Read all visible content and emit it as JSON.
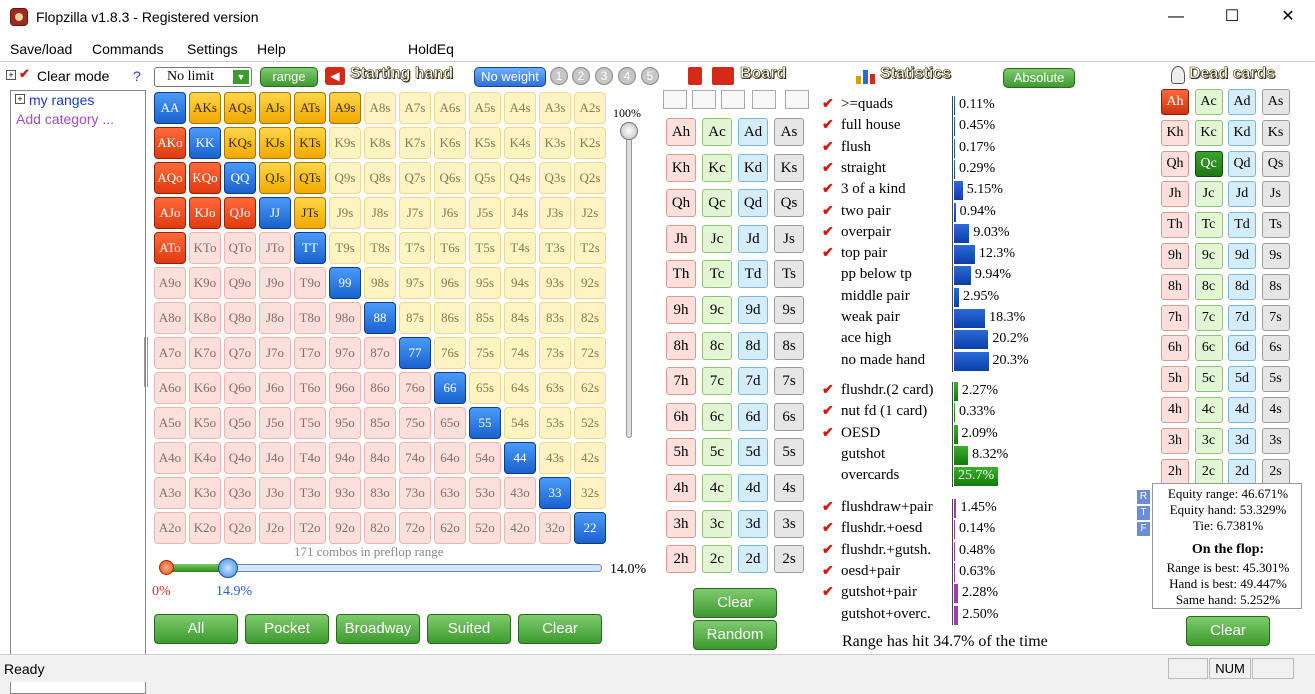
{
  "window": {
    "title": "Flopzilla v1.8.3 - Registered version",
    "min": "—",
    "max": "☐",
    "close": "✕"
  },
  "menu": [
    "Save/load",
    "Commands",
    "Settings",
    "Help",
    "HoldEq"
  ],
  "left": {
    "clear_mode": "Clear mode",
    "help": "?",
    "tree_item": "my ranges",
    "add_category": "Add category ..."
  },
  "toolbar": {
    "limit": "No limit",
    "range": "range",
    "starting_hand": "Starting hand",
    "no_weight": "No weight",
    "weights": [
      "1",
      "2",
      "3",
      "4",
      "5"
    ]
  },
  "grid": {
    "rows": [
      [
        "AA",
        "AKs",
        "AQs",
        "AJs",
        "ATs",
        "A9s",
        "A8s",
        "A7s",
        "A6s",
        "A5s",
        "A4s",
        "A3s",
        "A2s"
      ],
      [
        "AKo",
        "KK",
        "KQs",
        "KJs",
        "KTs",
        "K9s",
        "K8s",
        "K7s",
        "K6s",
        "K5s",
        "K4s",
        "K3s",
        "K2s"
      ],
      [
        "AQo",
        "KQo",
        "QQ",
        "QJs",
        "QTs",
        "Q9s",
        "Q8s",
        "Q7s",
        "Q6s",
        "Q5s",
        "Q4s",
        "Q3s",
        "Q2s"
      ],
      [
        "AJo",
        "KJo",
        "QJo",
        "JJ",
        "JTs",
        "J9s",
        "J8s",
        "J7s",
        "J6s",
        "J5s",
        "J4s",
        "J3s",
        "J2s"
      ],
      [
        "ATo",
        "KTo",
        "QTo",
        "JTo",
        "TT",
        "T9s",
        "T8s",
        "T7s",
        "T6s",
        "T5s",
        "T4s",
        "T3s",
        "T2s"
      ],
      [
        "A9o",
        "K9o",
        "Q9o",
        "J9o",
        "T9o",
        "99",
        "98s",
        "97s",
        "96s",
        "95s",
        "94s",
        "93s",
        "92s"
      ],
      [
        "A8o",
        "K8o",
        "Q8o",
        "J8o",
        "T8o",
        "98o",
        "88",
        "87s",
        "86s",
        "85s",
        "84s",
        "83s",
        "82s"
      ],
      [
        "A7o",
        "K7o",
        "Q7o",
        "J7o",
        "T7o",
        "97o",
        "87o",
        "77",
        "76s",
        "75s",
        "74s",
        "73s",
        "72s"
      ],
      [
        "A6o",
        "K6o",
        "Q6o",
        "J6o",
        "T6o",
        "96o",
        "86o",
        "76o",
        "66",
        "65s",
        "64s",
        "63s",
        "62s"
      ],
      [
        "A5o",
        "K5o",
        "Q5o",
        "J5o",
        "T5o",
        "95o",
        "85o",
        "75o",
        "65o",
        "55",
        "54s",
        "53s",
        "52s"
      ],
      [
        "A4o",
        "K4o",
        "Q4o",
        "J4o",
        "T4o",
        "94o",
        "84o",
        "74o",
        "64o",
        "54o",
        "44",
        "43s",
        "42s"
      ],
      [
        "A3o",
        "K3o",
        "Q3o",
        "J3o",
        "T3o",
        "93o",
        "83o",
        "73o",
        "63o",
        "53o",
        "43o",
        "33",
        "32s"
      ],
      [
        "A2o",
        "K2o",
        "Q2o",
        "J2o",
        "T2o",
        "92o",
        "82o",
        "72o",
        "62o",
        "52o",
        "42o",
        "32o",
        "22"
      ]
    ],
    "selected": [
      "AA",
      "KK",
      "QQ",
      "JJ",
      "TT",
      "99",
      "88",
      "77",
      "66",
      "55",
      "44",
      "33",
      "22",
      "AKs",
      "AQs",
      "AJs",
      "ATs",
      "A9s",
      "KQs",
      "KJs",
      "KTs",
      "QJs",
      "QTs",
      "JTs",
      "AKo",
      "AQo",
      "KQo",
      "AJo",
      "KJo",
      "QJo",
      "ATo"
    ],
    "vslider_label": "100%",
    "combos": "171 combos in preflop range",
    "hslider_left": "0%",
    "hslider_value": "14.9%",
    "hslider_right": "14.0%",
    "hslider_fraction": 0.149
  },
  "bottom_buttons": [
    "All",
    "Pocket",
    "Broadway",
    "Suited",
    "Clear"
  ],
  "board": {
    "header": "Board",
    "rows": [
      [
        "Ah",
        "Ac",
        "Ad",
        "As"
      ],
      [
        "Kh",
        "Kc",
        "Kd",
        "Ks"
      ],
      [
        "Qh",
        "Qc",
        "Qd",
        "Qs"
      ],
      [
        "Jh",
        "Jc",
        "Jd",
        "Js"
      ],
      [
        "Th",
        "Tc",
        "Td",
        "Ts"
      ],
      [
        "9h",
        "9c",
        "9d",
        "9s"
      ],
      [
        "8h",
        "8c",
        "8d",
        "8s"
      ],
      [
        "7h",
        "7c",
        "7d",
        "7s"
      ],
      [
        "6h",
        "6c",
        "6d",
        "6s"
      ],
      [
        "5h",
        "5c",
        "5d",
        "5s"
      ],
      [
        "4h",
        "4c",
        "4d",
        "4s"
      ],
      [
        "3h",
        "3c",
        "3d",
        "3s"
      ],
      [
        "2h",
        "2c",
        "2d",
        "2s"
      ]
    ],
    "clear": "Clear",
    "random": "Random"
  },
  "statistics": {
    "header": "Statistics",
    "absolute": "Absolute",
    "groups": [
      [
        {
          "label": ">=quads",
          "pct": "0.11%",
          "v": 0.11,
          "check": true
        },
        {
          "label": "full house",
          "pct": "0.45%",
          "v": 0.45,
          "check": true
        },
        {
          "label": "flush",
          "pct": "0.17%",
          "v": 0.17,
          "check": true
        },
        {
          "label": "straight",
          "pct": "0.29%",
          "v": 0.29,
          "check": true
        },
        {
          "label": "3 of a kind",
          "pct": "5.15%",
          "v": 5.15,
          "check": true
        },
        {
          "label": "two pair",
          "pct": "0.94%",
          "v": 0.94,
          "check": true
        },
        {
          "label": "overpair",
          "pct": "9.03%",
          "v": 9.03,
          "check": true
        },
        {
          "label": "top pair",
          "pct": "12.3%",
          "v": 12.3,
          "check": true
        },
        {
          "label": "pp below tp",
          "pct": "9.94%",
          "v": 9.94,
          "check": false
        },
        {
          "label": "middle pair",
          "pct": "2.95%",
          "v": 2.95,
          "check": false
        },
        {
          "label": "weak pair",
          "pct": "18.3%",
          "v": 18.3,
          "check": false
        },
        {
          "label": "ace high",
          "pct": "20.2%",
          "v": 20.2,
          "check": false
        },
        {
          "label": "no made hand",
          "pct": "20.3%",
          "v": 20.3,
          "check": false
        }
      ],
      [
        {
          "label": "flushdr.(2 card)",
          "pct": "2.27%",
          "v": 2.27,
          "check": true
        },
        {
          "label": "nut fd (1 card)",
          "pct": "0.33%",
          "v": 0.33,
          "check": true
        },
        {
          "label": "OESD",
          "pct": "2.09%",
          "v": 2.09,
          "check": true
        },
        {
          "label": "gutshot",
          "pct": "8.32%",
          "v": 8.32,
          "check": false
        },
        {
          "label": "overcards",
          "pct": "25.7%",
          "v": 25.7,
          "check": false
        }
      ],
      [
        {
          "label": "flushdraw+pair",
          "pct": "1.45%",
          "v": 1.45,
          "check": true
        },
        {
          "label": "flushdr.+oesd",
          "pct": "0.14%",
          "v": 0.14,
          "check": true
        },
        {
          "label": "flushdr.+gutsh.",
          "pct": "0.48%",
          "v": 0.48,
          "check": true
        },
        {
          "label": "oesd+pair",
          "pct": "0.63%",
          "v": 0.63,
          "check": true
        },
        {
          "label": "gutshot+pair",
          "pct": "2.28%",
          "v": 2.28,
          "check": true
        },
        {
          "label": "gutshot+overc.",
          "pct": "2.50%",
          "v": 2.5,
          "check": false
        }
      ]
    ],
    "hit": "Range has hit 34.7% of the time"
  },
  "dead": {
    "header": "Dead cards",
    "rows": [
      [
        "Ah",
        "Ac",
        "Ad",
        "As"
      ],
      [
        "Kh",
        "Kc",
        "Kd",
        "Ks"
      ],
      [
        "Qh",
        "Qc",
        "Qd",
        "Qs"
      ],
      [
        "Jh",
        "Jc",
        "Jd",
        "Js"
      ],
      [
        "Th",
        "Tc",
        "Td",
        "Ts"
      ],
      [
        "9h",
        "9c",
        "9d",
        "9s"
      ],
      [
        "8h",
        "8c",
        "8d",
        "8s"
      ],
      [
        "7h",
        "7c",
        "7d",
        "7s"
      ],
      [
        "6h",
        "6c",
        "6d",
        "6s"
      ],
      [
        "5h",
        "5c",
        "5d",
        "5s"
      ],
      [
        "4h",
        "4c",
        "4d",
        "4s"
      ],
      [
        "3h",
        "3c",
        "3d",
        "3s"
      ],
      [
        "2h",
        "2c",
        "2d",
        "2s"
      ]
    ],
    "selected": [
      "Ah",
      "Qc"
    ],
    "clear": "Clear"
  },
  "equity": {
    "tabs": [
      "R",
      "T",
      "F"
    ],
    "range": "Equity range: 46.671%",
    "hand": "Equity hand: 53.329%",
    "tie": "Tie: 6.7381%",
    "flop_title": "On the flop:",
    "range_best": "Range is best: 45.301%",
    "hand_best": "Hand is best: 49.447%",
    "same": "Same hand: 5.252%"
  },
  "status": {
    "text": "Ready",
    "num": "NUM"
  }
}
